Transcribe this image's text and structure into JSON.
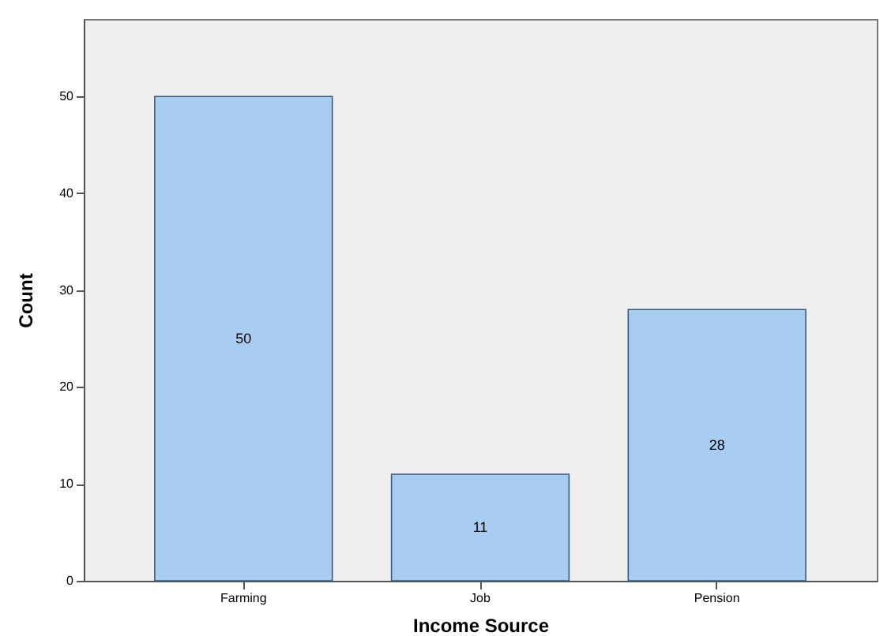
{
  "chart_data": {
    "type": "bar",
    "xlabel": "Income Source",
    "ylabel": "Count",
    "categories": [
      "Farming",
      "Job",
      "Pension"
    ],
    "values": [
      50,
      11,
      28
    ],
    "color": "#a9cdf0",
    "data_labels": true,
    "ylim": [
      0,
      58
    ],
    "yticks": [
      0,
      10,
      20,
      30,
      40,
      50
    ],
    "grid": false
  }
}
